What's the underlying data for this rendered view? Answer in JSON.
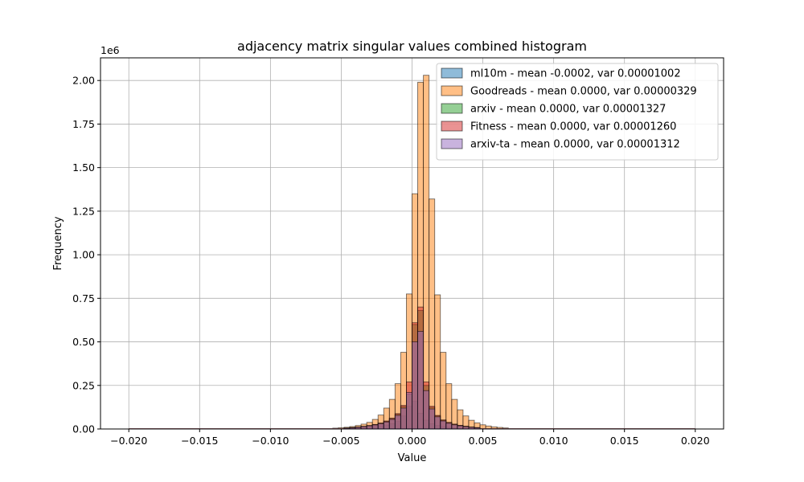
{
  "chart_data": {
    "type": "bar",
    "title": "adjacency matrix singular values combined histogram",
    "xlabel": "Value",
    "ylabel": "Frequency",
    "y_offset_label": "1e6",
    "xlim": [
      -0.022,
      0.022
    ],
    "ylim": [
      0,
      2.13
    ],
    "grid": true,
    "legend_position": "top-right",
    "bin_width": 0.0004,
    "bin_range": [
      -0.02,
      0.02
    ],
    "x_ticks": [
      -0.02,
      -0.015,
      -0.01,
      -0.005,
      0.0,
      0.005,
      0.01,
      0.015,
      0.02
    ],
    "x_tick_labels": [
      "−0.020",
      "−0.015",
      "−0.010",
      "−0.005",
      "0.000",
      "0.005",
      "0.010",
      "0.015",
      "0.020"
    ],
    "y_ticks": [
      0,
      0.25,
      0.5,
      0.75,
      1.0,
      1.25,
      1.5,
      1.75,
      2.0
    ],
    "y_tick_labels": [
      "0.00",
      "0.25",
      "0.50",
      "0.75",
      "1.00",
      "1.25",
      "1.50",
      "1.75",
      "2.00"
    ],
    "series": [
      {
        "name": "ml10m - mean -0.0002, var 0.00001002",
        "color": "#1f77b4",
        "bins": [
          {
            "x0": -0.0044,
            "y": 0.004
          },
          {
            "x0": -0.004,
            "y": 0.006
          },
          {
            "x0": -0.0036,
            "y": 0.008
          },
          {
            "x0": -0.0032,
            "y": 0.01
          },
          {
            "x0": -0.0028,
            "y": 0.013
          },
          {
            "x0": -0.0024,
            "y": 0.017
          },
          {
            "x0": -0.002,
            "y": 0.022
          },
          {
            "x0": -0.0016,
            "y": 0.03
          },
          {
            "x0": -0.0012,
            "y": 0.045
          },
          {
            "x0": -0.0008,
            "y": 0.075
          },
          {
            "x0": -0.0004,
            "y": 0.13
          },
          {
            "x0": 0.0,
            "y": 0.16
          },
          {
            "x0": 0.0004,
            "y": 0.09
          },
          {
            "x0": 0.0008,
            "y": 0.05
          },
          {
            "x0": 0.0012,
            "y": 0.03
          },
          {
            "x0": 0.0016,
            "y": 0.02
          },
          {
            "x0": 0.002,
            "y": 0.014
          },
          {
            "x0": 0.0024,
            "y": 0.01
          },
          {
            "x0": 0.0028,
            "y": 0.007
          },
          {
            "x0": 0.0032,
            "y": 0.005
          }
        ]
      },
      {
        "name": "Goodreads - mean 0.0000, var 0.00000329",
        "color": "#ff7f0e",
        "bins": [
          {
            "x0": -0.0056,
            "y": 0.005
          },
          {
            "x0": -0.0052,
            "y": 0.007
          },
          {
            "x0": -0.0048,
            "y": 0.01
          },
          {
            "x0": -0.0044,
            "y": 0.014
          },
          {
            "x0": -0.004,
            "y": 0.02
          },
          {
            "x0": -0.0036,
            "y": 0.028
          },
          {
            "x0": -0.0032,
            "y": 0.038
          },
          {
            "x0": -0.0028,
            "y": 0.055
          },
          {
            "x0": -0.0024,
            "y": 0.08
          },
          {
            "x0": -0.002,
            "y": 0.12
          },
          {
            "x0": -0.0016,
            "y": 0.17
          },
          {
            "x0": -0.0012,
            "y": 0.26
          },
          {
            "x0": -0.0008,
            "y": 0.44
          },
          {
            "x0": -0.0004,
            "y": 0.775
          },
          {
            "x0": 0.0,
            "y": 1.35
          },
          {
            "x0": 0.0004,
            "y": 1.99
          },
          {
            "x0": 0.0008,
            "y": 2.03
          },
          {
            "x0": 0.0012,
            "y": 1.32
          },
          {
            "x0": 0.0016,
            "y": 0.77
          },
          {
            "x0": 0.002,
            "y": 0.44
          },
          {
            "x0": 0.0024,
            "y": 0.26
          },
          {
            "x0": 0.0028,
            "y": 0.17
          },
          {
            "x0": 0.0032,
            "y": 0.11
          },
          {
            "x0": 0.0036,
            "y": 0.075
          },
          {
            "x0": 0.004,
            "y": 0.05
          },
          {
            "x0": 0.0044,
            "y": 0.035
          },
          {
            "x0": 0.0048,
            "y": 0.024
          },
          {
            "x0": 0.0052,
            "y": 0.017
          },
          {
            "x0": 0.0056,
            "y": 0.012
          },
          {
            "x0": 0.006,
            "y": 0.009
          },
          {
            "x0": 0.0064,
            "y": 0.006
          }
        ]
      },
      {
        "name": "arxiv - mean 0.0000, var 0.00001327",
        "color": "#2ca02c",
        "bins": [
          {
            "x0": -0.0048,
            "y": 0.005
          },
          {
            "x0": -0.0044,
            "y": 0.008
          },
          {
            "x0": -0.004,
            "y": 0.011
          },
          {
            "x0": -0.0036,
            "y": 0.015
          },
          {
            "x0": -0.0032,
            "y": 0.019
          },
          {
            "x0": -0.0028,
            "y": 0.025
          },
          {
            "x0": -0.0024,
            "y": 0.033
          },
          {
            "x0": -0.002,
            "y": 0.044
          },
          {
            "x0": -0.0016,
            "y": 0.06
          },
          {
            "x0": -0.0012,
            "y": 0.085
          },
          {
            "x0": -0.0008,
            "y": 0.13
          },
          {
            "x0": -0.0004,
            "y": 0.2
          },
          {
            "x0": 0.0,
            "y": 0.6
          },
          {
            "x0": 0.0004,
            "y": 0.68
          },
          {
            "x0": 0.0008,
            "y": 0.25
          },
          {
            "x0": 0.0012,
            "y": 0.125
          },
          {
            "x0": 0.0016,
            "y": 0.075
          },
          {
            "x0": 0.002,
            "y": 0.05
          },
          {
            "x0": 0.0024,
            "y": 0.036
          },
          {
            "x0": 0.0028,
            "y": 0.027
          },
          {
            "x0": 0.0032,
            "y": 0.02
          },
          {
            "x0": 0.0036,
            "y": 0.015
          },
          {
            "x0": 0.004,
            "y": 0.011
          },
          {
            "x0": 0.0044,
            "y": 0.008
          }
        ]
      },
      {
        "name": "Fitness - mean 0.0000, var 0.00001260",
        "color": "#d62728",
        "bins": [
          {
            "x0": -0.0048,
            "y": 0.005
          },
          {
            "x0": -0.0044,
            "y": 0.008
          },
          {
            "x0": -0.004,
            "y": 0.011
          },
          {
            "x0": -0.0036,
            "y": 0.015
          },
          {
            "x0": -0.0032,
            "y": 0.02
          },
          {
            "x0": -0.0028,
            "y": 0.026
          },
          {
            "x0": -0.0024,
            "y": 0.034
          },
          {
            "x0": -0.002,
            "y": 0.046
          },
          {
            "x0": -0.0016,
            "y": 0.062
          },
          {
            "x0": -0.0012,
            "y": 0.088
          },
          {
            "x0": -0.0008,
            "y": 0.135
          },
          {
            "x0": -0.0004,
            "y": 0.27
          },
          {
            "x0": 0.0,
            "y": 0.61
          },
          {
            "x0": 0.0004,
            "y": 0.7
          },
          {
            "x0": 0.0008,
            "y": 0.27
          },
          {
            "x0": 0.0012,
            "y": 0.13
          },
          {
            "x0": 0.0016,
            "y": 0.078
          },
          {
            "x0": 0.002,
            "y": 0.052
          },
          {
            "x0": 0.0024,
            "y": 0.038
          },
          {
            "x0": 0.0028,
            "y": 0.028
          },
          {
            "x0": 0.0032,
            "y": 0.021
          },
          {
            "x0": 0.0036,
            "y": 0.016
          },
          {
            "x0": 0.004,
            "y": 0.011
          },
          {
            "x0": 0.0044,
            "y": 0.008
          }
        ]
      },
      {
        "name": "arxiv-ta - mean 0.0000, var 0.00001312",
        "color": "#9467bd",
        "bins": [
          {
            "x0": -0.0048,
            "y": 0.005
          },
          {
            "x0": -0.0044,
            "y": 0.007
          },
          {
            "x0": -0.004,
            "y": 0.01
          },
          {
            "x0": -0.0036,
            "y": 0.014
          },
          {
            "x0": -0.0032,
            "y": 0.018
          },
          {
            "x0": -0.0028,
            "y": 0.023
          },
          {
            "x0": -0.0024,
            "y": 0.03
          },
          {
            "x0": -0.002,
            "y": 0.04
          },
          {
            "x0": -0.0016,
            "y": 0.055
          },
          {
            "x0": -0.0012,
            "y": 0.078
          },
          {
            "x0": -0.0008,
            "y": 0.12
          },
          {
            "x0": -0.0004,
            "y": 0.21
          },
          {
            "x0": 0.0,
            "y": 0.5
          },
          {
            "x0": 0.0004,
            "y": 0.56
          },
          {
            "x0": 0.0008,
            "y": 0.22
          },
          {
            "x0": 0.0012,
            "y": 0.115
          },
          {
            "x0": 0.0016,
            "y": 0.07
          },
          {
            "x0": 0.002,
            "y": 0.046
          },
          {
            "x0": 0.0024,
            "y": 0.033
          },
          {
            "x0": 0.0028,
            "y": 0.024
          },
          {
            "x0": 0.0032,
            "y": 0.018
          },
          {
            "x0": 0.0036,
            "y": 0.013
          },
          {
            "x0": 0.004,
            "y": 0.01
          },
          {
            "x0": 0.0044,
            "y": 0.007
          }
        ]
      }
    ]
  }
}
